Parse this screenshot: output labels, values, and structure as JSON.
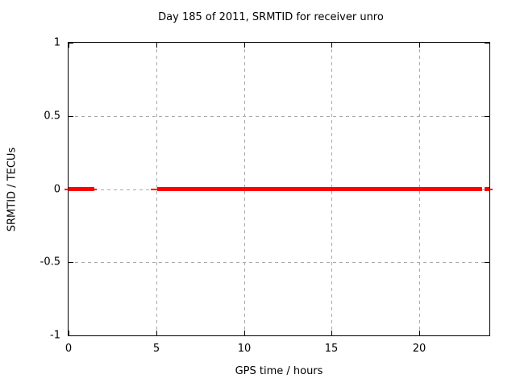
{
  "chart_data": {
    "type": "line",
    "title": "Day 185 of 2011, SRMTID for receiver unro",
    "xlabel": "GPS time / hours",
    "ylabel": "SRMTID / TECUs",
    "xlim": [
      0,
      24
    ],
    "ylim": [
      -1,
      1
    ],
    "x_ticks": [
      {
        "value": 0,
        "label": "0"
      },
      {
        "value": 5,
        "label": "5"
      },
      {
        "value": 10,
        "label": "10"
      },
      {
        "value": 15,
        "label": "15"
      },
      {
        "value": 20,
        "label": "20"
      }
    ],
    "y_ticks": [
      {
        "value": 1,
        "label": "1"
      },
      {
        "value": 0.5,
        "label": "0.5"
      },
      {
        "value": 0,
        "label": "0"
      },
      {
        "value": -0.5,
        "label": "-0.5"
      },
      {
        "value": -1,
        "label": "-1"
      }
    ],
    "grid": true,
    "legend": "none",
    "colors": {
      "background": "#ffffff",
      "axis": "#000000",
      "grid": "#a9a9a9",
      "series": "#ff0000"
    },
    "series": [
      {
        "name": "SRMTID",
        "color": "#ff0000",
        "constant_value": 0,
        "segments": [
          {
            "x_start": -0.25,
            "x_end": 0.0,
            "y": 0,
            "weight": "thin"
          },
          {
            "x_start": 0.0,
            "x_end": 1.45,
            "y": 0,
            "weight": "thick"
          },
          {
            "x_start": 1.45,
            "x_end": 1.6,
            "y": 0,
            "weight": "thin"
          },
          {
            "x_start": 4.67,
            "x_end": 5.06,
            "y": 0,
            "weight": "thin"
          },
          {
            "x_start": 5.06,
            "x_end": 23.59,
            "y": 0,
            "weight": "thick"
          },
          {
            "x_start": 23.73,
            "x_end": 24.02,
            "y": 0,
            "weight": "thick"
          },
          {
            "x_start": 24.02,
            "x_end": 24.18,
            "y": 0,
            "weight": "thin"
          }
        ]
      }
    ]
  }
}
